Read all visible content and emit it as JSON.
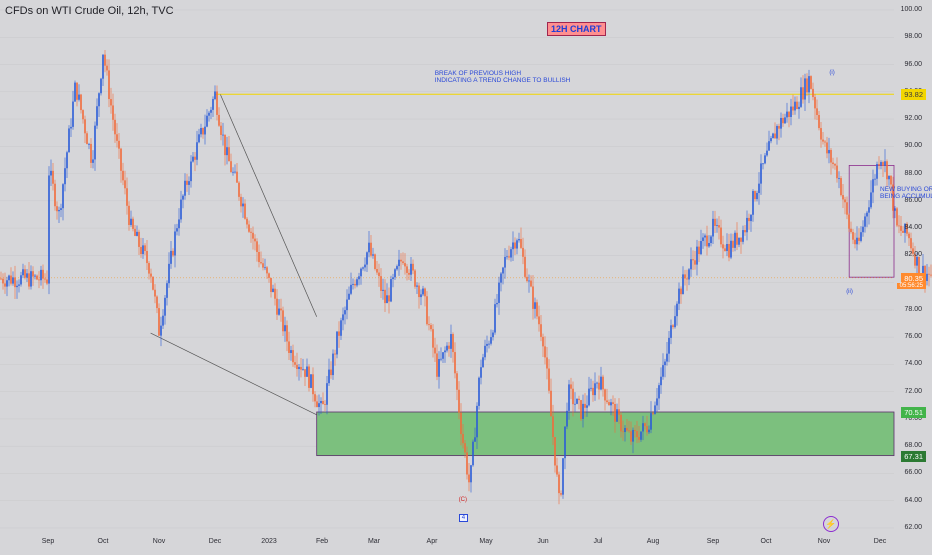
{
  "chart_data": {
    "type": "candlestick",
    "title": "CFDs on WTI Crude Oil, 12h, TVC",
    "badge": "12H CHART",
    "x_labels": [
      "Sep",
      "Oct",
      "Nov",
      "Dec",
      "2023",
      "Feb",
      "Mar",
      "Apr",
      "May",
      "Jun",
      "Jul",
      "Aug",
      "Sep",
      "Oct",
      "Nov",
      "Dec"
    ],
    "y_ticks": [
      100.0,
      98.0,
      96.0,
      94.0,
      92.0,
      90.0,
      88.0,
      86.0,
      84.0,
      82.0,
      80.0,
      78.0,
      76.0,
      74.0,
      72.0,
      70.0,
      68.0,
      66.0,
      64.0,
      62.0
    ],
    "ylim": [
      62,
      100
    ],
    "price_path": [
      [
        0,
        88.5
      ],
      [
        0.2,
        85
      ],
      [
        0.5,
        94.5
      ],
      [
        0.8,
        89
      ],
      [
        1,
        97
      ],
      [
        1.25,
        90
      ],
      [
        1.5,
        84
      ],
      [
        1.85,
        81
      ],
      [
        2,
        76.5
      ],
      [
        2.35,
        85
      ],
      [
        2.6,
        89
      ],
      [
        3,
        93.8
      ],
      [
        3.2,
        89.5
      ],
      [
        3.5,
        86
      ],
      [
        3.8,
        82
      ],
      [
        4.1,
        79
      ],
      [
        4.4,
        75
      ],
      [
        4.7,
        73.5
      ],
      [
        5,
        70.5
      ],
      [
        5.3,
        76
      ],
      [
        5.6,
        80
      ],
      [
        5.9,
        82.5
      ],
      [
        6.2,
        78.5
      ],
      [
        6.5,
        82
      ],
      [
        6.85,
        79
      ],
      [
        7.1,
        73.5
      ],
      [
        7.35,
        76
      ],
      [
        7.55,
        69
      ],
      [
        7.7,
        65
      ],
      [
        7.9,
        74
      ],
      [
        8.1,
        76.5
      ],
      [
        8.35,
        82
      ],
      [
        8.55,
        83.5
      ],
      [
        8.8,
        79
      ],
      [
        9,
        76
      ],
      [
        9.2,
        68
      ],
      [
        9.3,
        63.5
      ],
      [
        9.45,
        72
      ],
      [
        9.7,
        70.5
      ],
      [
        10,
        73
      ],
      [
        10.35,
        70
      ],
      [
        10.6,
        68.5
      ],
      [
        10.9,
        69.5
      ],
      [
        11.2,
        74
      ],
      [
        11.4,
        79
      ],
      [
        11.7,
        82
      ],
      [
        12,
        84
      ],
      [
        12.3,
        82.5
      ],
      [
        12.6,
        84
      ],
      [
        12.9,
        88
      ],
      [
        13.2,
        91.5
      ],
      [
        13.5,
        93
      ],
      [
        13.75,
        95
      ],
      [
        14,
        90
      ],
      [
        14.25,
        88
      ],
      [
        14.45,
        84
      ],
      [
        14.6,
        82.5
      ],
      [
        14.8,
        86
      ],
      [
        15,
        89.5
      ],
      [
        15.15,
        88
      ],
      [
        15.3,
        84
      ],
      [
        15.5,
        83.5
      ],
      [
        15.7,
        81
      ],
      [
        16,
        80.3
      ]
    ],
    "lines": [
      {
        "from": [
          3,
          93.82
        ],
        "to": [
          16.95,
          93.82
        ],
        "style": "yellow-horizontal"
      },
      {
        "from": [
          1.85,
          76.3
        ],
        "to": [
          4.9,
          70.3
        ],
        "style": "gray-trendline"
      },
      {
        "from": [
          3.1,
          93.8
        ],
        "to": [
          4.9,
          77.5
        ],
        "style": "gray-trendline"
      }
    ],
    "zones": [
      {
        "label": "demand-zone",
        "y_low": 67.31,
        "y_high": 70.51,
        "x_start": 4.9,
        "x_end": 17
      },
      {
        "label": "accumulation-box",
        "y_low": 80.4,
        "y_high": 88.6,
        "x_start": 14.45,
        "x_end": 16.9
      }
    ],
    "horizontal_marks": [
      {
        "y": 80.35,
        "color": "#f0a040"
      }
    ],
    "annotations": [
      {
        "text": "BREAK OF PREVIOUS HIGH\nINDICATING A TREND CHANGE TO BULLISH",
        "x": 7.05,
        "y": 95.6
      },
      {
        "text": "NEW BUYING ORDERS\nBEING ACCUMULATED",
        "x": 15.0,
        "y": 87.1
      }
    ],
    "wave_labels": [
      {
        "text": "(i)",
        "x": 14.15,
        "y": 95.6,
        "color": "#2a48d8"
      },
      {
        "text": "(ii)",
        "x": 14.45,
        "y": 79.5,
        "color": "#2a48d8"
      },
      {
        "text": "(C)",
        "x": 7.55,
        "y": 64.3,
        "color": "#d01f1f"
      },
      {
        "text": "4",
        "x": 7.55,
        "y": 63.0,
        "color": "#2a48d8",
        "boxed": true
      }
    ],
    "price_tags": [
      {
        "value": "93.82",
        "bg": "#f2d600",
        "fg": "#3d3d3d"
      },
      {
        "value": "80.35",
        "bg": "#ff8a2e",
        "fg": "#ffffff",
        "sub": "05:56:25"
      },
      {
        "value": "70.51",
        "bg": "#42b44a",
        "fg": "#ffffff"
      },
      {
        "value": "67.31",
        "bg": "#2c7a33",
        "fg": "#ffffff"
      }
    ]
  }
}
